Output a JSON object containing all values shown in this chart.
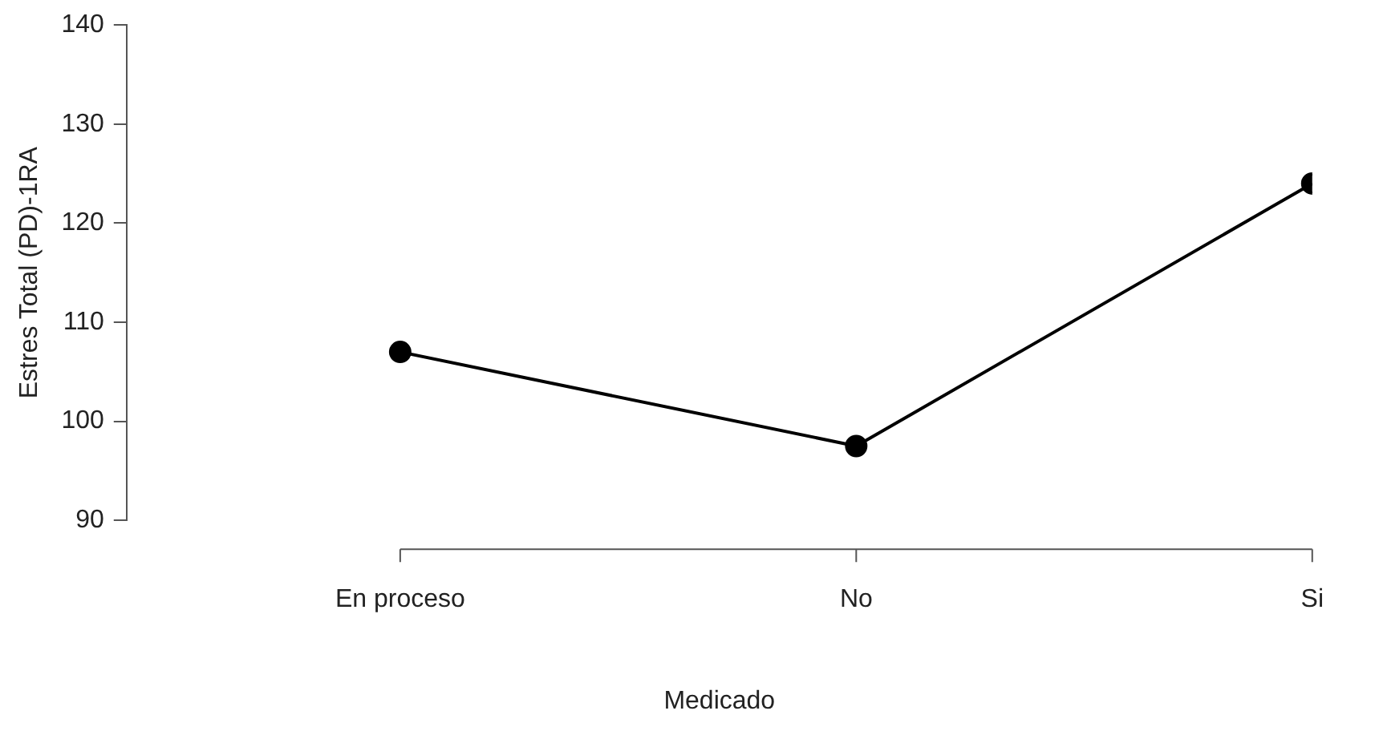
{
  "chart_data": {
    "type": "line",
    "xlabel": "Medicado",
    "ylabel": "Estres Total (PD)-1RA",
    "categories": [
      "En proceso",
      "No",
      "Si"
    ],
    "values": [
      107,
      97.5,
      124
    ],
    "color": "#000000",
    "ylim": [
      90,
      140
    ],
    "yticks": [
      90,
      100,
      110,
      120,
      130,
      140
    ],
    "marker": "circle",
    "line_style": "solid"
  }
}
